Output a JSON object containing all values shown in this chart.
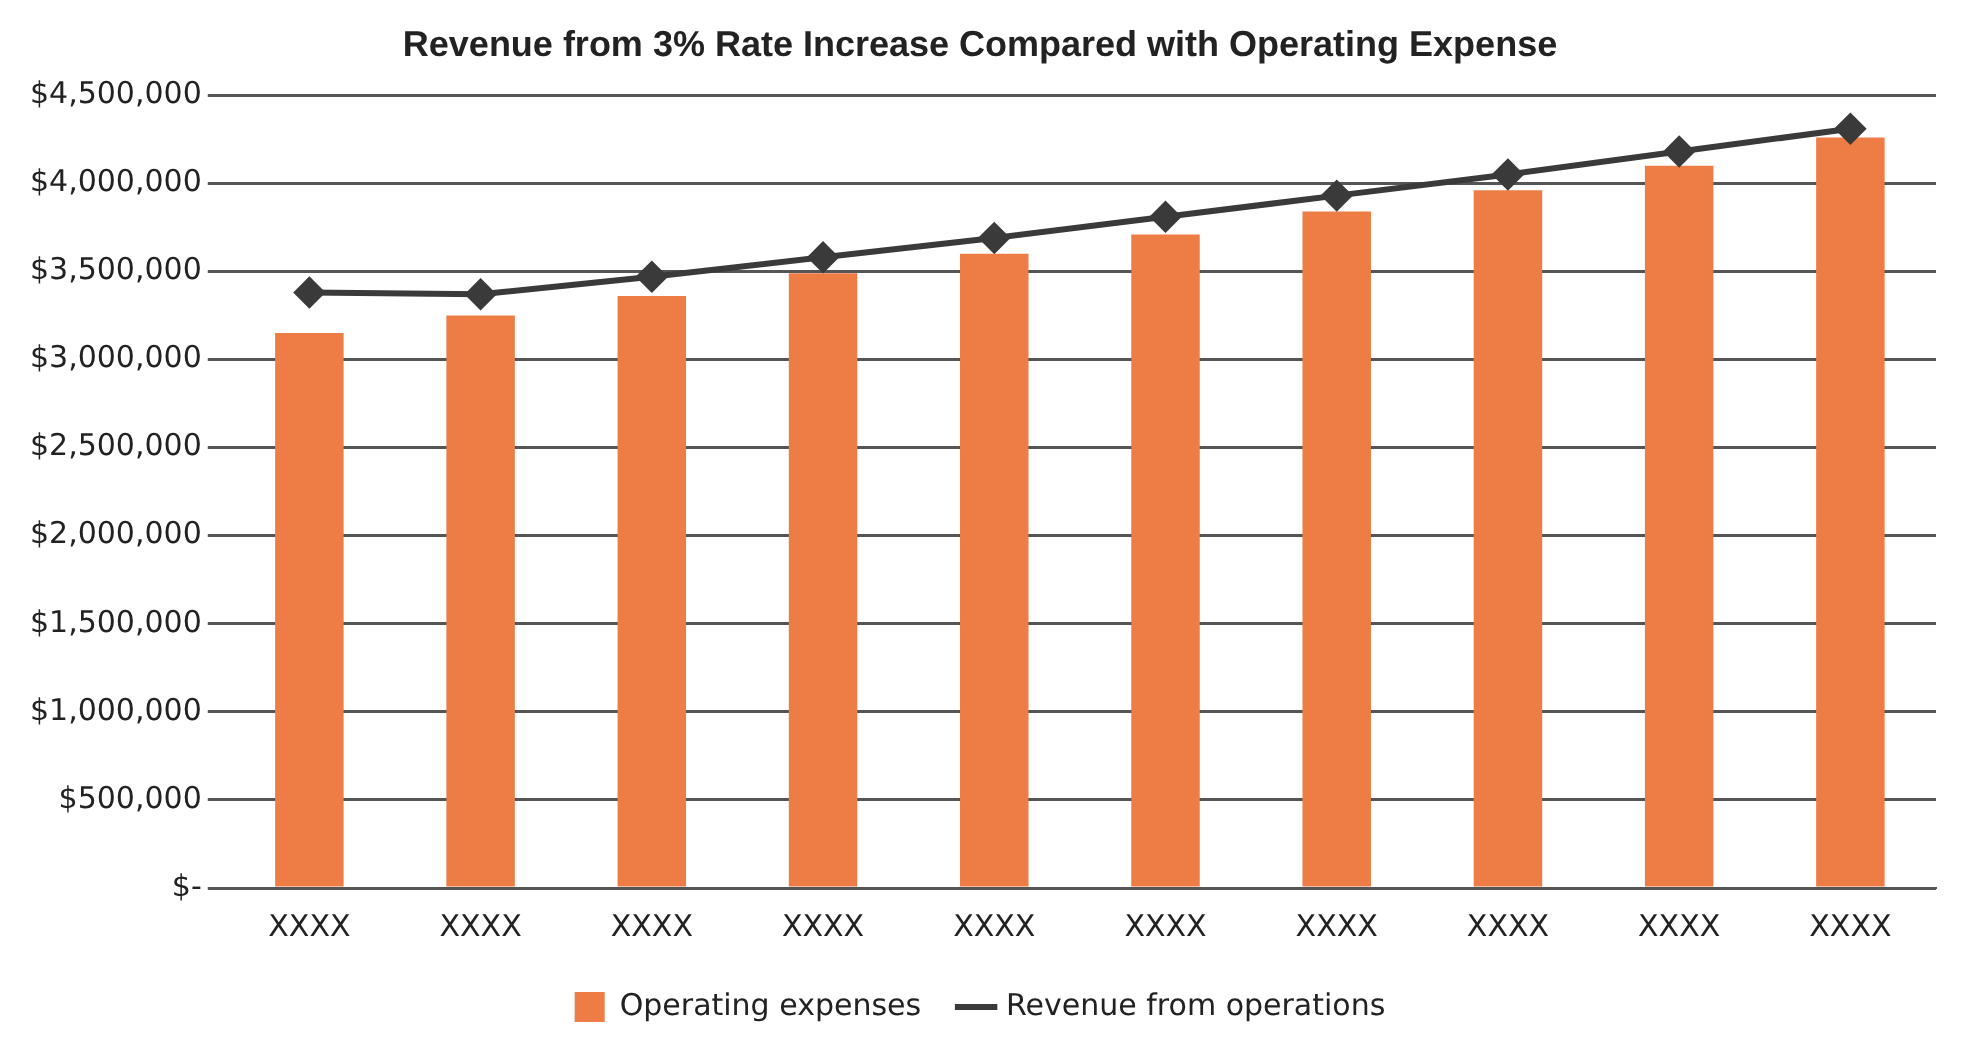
{
  "chart_data": {
    "type": "bar",
    "title": "Revenue from 3% Rate Increase Compared with Operating Expense",
    "categories": [
      "XXXX",
      "XXXX",
      "XXXX",
      "XXXX",
      "XXXX",
      "XXXX",
      "XXXX",
      "XXXX",
      "XXXX",
      "XXXX"
    ],
    "series": [
      {
        "name": "Operating expenses",
        "color": "#ed7d45",
        "values": [
          3150000,
          3250000,
          3360000,
          3490000,
          3600000,
          3710000,
          3840000,
          3960000,
          4100000,
          4260000
        ]
      },
      {
        "name": "Revenue from operations",
        "type": "line",
        "color": "#3a3a3a",
        "marker": "diamond",
        "values": [
          3380000,
          3370000,
          3470000,
          3580000,
          3690000,
          3810000,
          3930000,
          4050000,
          4180000,
          4310000
        ]
      }
    ],
    "ylim": [
      0,
      4500000
    ],
    "yticks": [
      {
        "value": 0,
        "label": "$-"
      },
      {
        "value": 500000,
        "label": "$500,000"
      },
      {
        "value": 1000000,
        "label": "$1,000,000"
      },
      {
        "value": 1500000,
        "label": "$1,500,000"
      },
      {
        "value": 2000000,
        "label": "$2,000,000"
      },
      {
        "value": 2500000,
        "label": "$2,500,000"
      },
      {
        "value": 3000000,
        "label": "$3,000,000"
      },
      {
        "value": 3500000,
        "label": "$3,500,000"
      },
      {
        "value": 4000000,
        "label": "$4,000,000"
      },
      {
        "value": 4500000,
        "label": "$4,500,000"
      }
    ],
    "grid": "y",
    "legend": "bottom"
  }
}
